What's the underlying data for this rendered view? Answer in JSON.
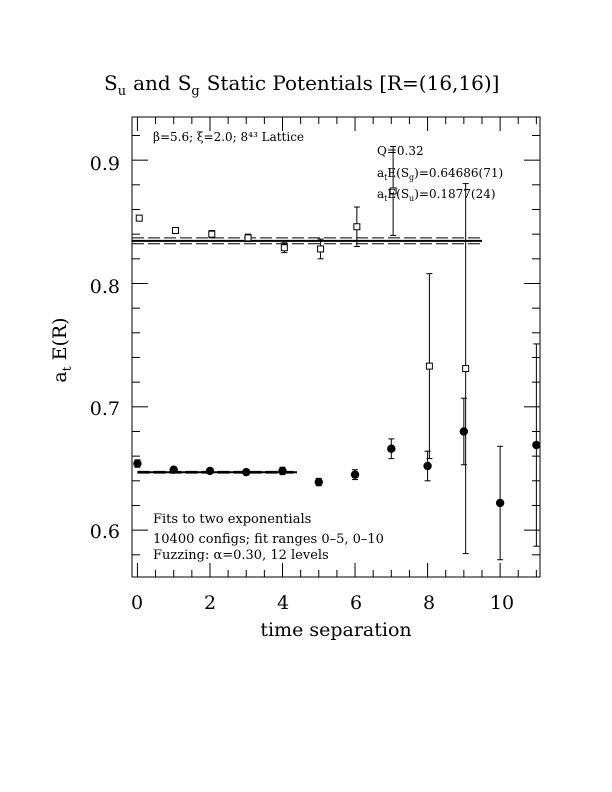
{
  "chart_data": {
    "type": "scatter",
    "title": {
      "main": "Static Potentials [R=(16,16)]",
      "s1": "S",
      "s1_sub": "u",
      "and": "and",
      "s2": "S",
      "s2_sub": "g"
    },
    "xlabel": "time separation",
    "ylabel": {
      "prefix": "a",
      "prefix_sub": "t",
      "main": "E(R)"
    },
    "xlim": [
      -0.15,
      11.1
    ],
    "ylim": [
      0.562,
      0.935
    ],
    "x_ticks": [
      {
        "value": 0,
        "label": "0"
      },
      {
        "value": 2,
        "label": "2"
      },
      {
        "value": 4,
        "label": "4"
      },
      {
        "value": 6,
        "label": "6"
      },
      {
        "value": 8,
        "label": "8"
      },
      {
        "value": 10,
        "label": "10"
      }
    ],
    "y_ticks": [
      {
        "value": 0.6,
        "label": "0.6"
      },
      {
        "value": 0.7,
        "label": "0.7"
      },
      {
        "value": 0.8,
        "label": "0.8"
      },
      {
        "value": 0.9,
        "label": "0.9"
      }
    ],
    "annotations": {
      "lattice": "β=5.6; ξ=2.0; 8⁴³ Lattice",
      "q": "Q=0.32",
      "energy_g_prefix": "a",
      "energy_g_prefix_sub": "t",
      "energy_g_mid": "E(S",
      "energy_g_sub": "g",
      "energy_g_value": ")=0.64686(71)",
      "energy_u_prefix": "a",
      "energy_u_prefix_sub": "t",
      "energy_u_mid": "E(S",
      "energy_u_sub": "u",
      "energy_u_value": ")=0.1877(24)",
      "fits": "Fits to two exponentials",
      "configs": "10400 configs; fit ranges 0–5, 0–10",
      "fuzzing": "Fuzzing: α=0.30, 12 levels"
    },
    "series": [
      {
        "marker": "filled-circle",
        "points": [
          {
            "x": 0,
            "y": 0.654,
            "err": 0.003
          },
          {
            "x": 1,
            "y": 0.649,
            "err": 0.002
          },
          {
            "x": 2,
            "y": 0.648,
            "err": 0.002
          },
          {
            "x": 3,
            "y": 0.647,
            "err": 0.002
          },
          {
            "x": 4,
            "y": 0.648,
            "err": 0.003
          },
          {
            "x": 5,
            "y": 0.639,
            "err": 0.003
          },
          {
            "x": 6,
            "y": 0.645,
            "err": 0.004
          },
          {
            "x": 7,
            "y": 0.666,
            "err": 0.008
          },
          {
            "x": 8,
            "y": 0.652,
            "err": 0.012
          },
          {
            "x": 9,
            "y": 0.68,
            "err": 0.027
          },
          {
            "x": 10,
            "y": 0.622,
            "err": 0.046
          },
          {
            "x": 11,
            "y": 0.669,
            "err": 0.082
          }
        ]
      },
      {
        "marker": "open-square",
        "points": [
          {
            "x": 0.05,
            "y": 0.853,
            "err": 0.002
          },
          {
            "x": 1.05,
            "y": 0.843,
            "err": 0.002
          },
          {
            "x": 2.05,
            "y": 0.84,
            "err": 0.003
          },
          {
            "x": 3.05,
            "y": 0.837,
            "err": 0.003
          },
          {
            "x": 4.05,
            "y": 0.829,
            "err": 0.004
          },
          {
            "x": 5.05,
            "y": 0.828,
            "err": 0.008
          },
          {
            "x": 6.05,
            "y": 0.846,
            "err": 0.016
          },
          {
            "x": 7.05,
            "y": 0.875,
            "err": 0.036
          },
          {
            "x": 8.05,
            "y": 0.733,
            "err": 0.075
          },
          {
            "x": 9.05,
            "y": 0.731,
            "err": 0.15
          }
        ]
      }
    ],
    "fit_lines": [
      {
        "label": "S_g fit central",
        "style": "solid",
        "x0": 0,
        "x1": 4.4,
        "y": 0.6469
      },
      {
        "label": "S_g fit upper",
        "style": "dashed",
        "x0": 0,
        "x1": 4.4,
        "y": 0.6476
      },
      {
        "label": "S_g fit lower",
        "style": "dashed",
        "x0": 0,
        "x1": 4.4,
        "y": 0.6462
      },
      {
        "label": "S_u fit central",
        "style": "solid",
        "x0": -0.15,
        "x1": 9.5,
        "y": 0.8346
      },
      {
        "label": "S_u fit upper",
        "style": "dashed",
        "x0": -0.15,
        "x1": 9.5,
        "y": 0.837
      },
      {
        "label": "S_u fit lower",
        "style": "dashed",
        "x0": -0.15,
        "x1": 9.5,
        "y": 0.8322
      }
    ]
  }
}
